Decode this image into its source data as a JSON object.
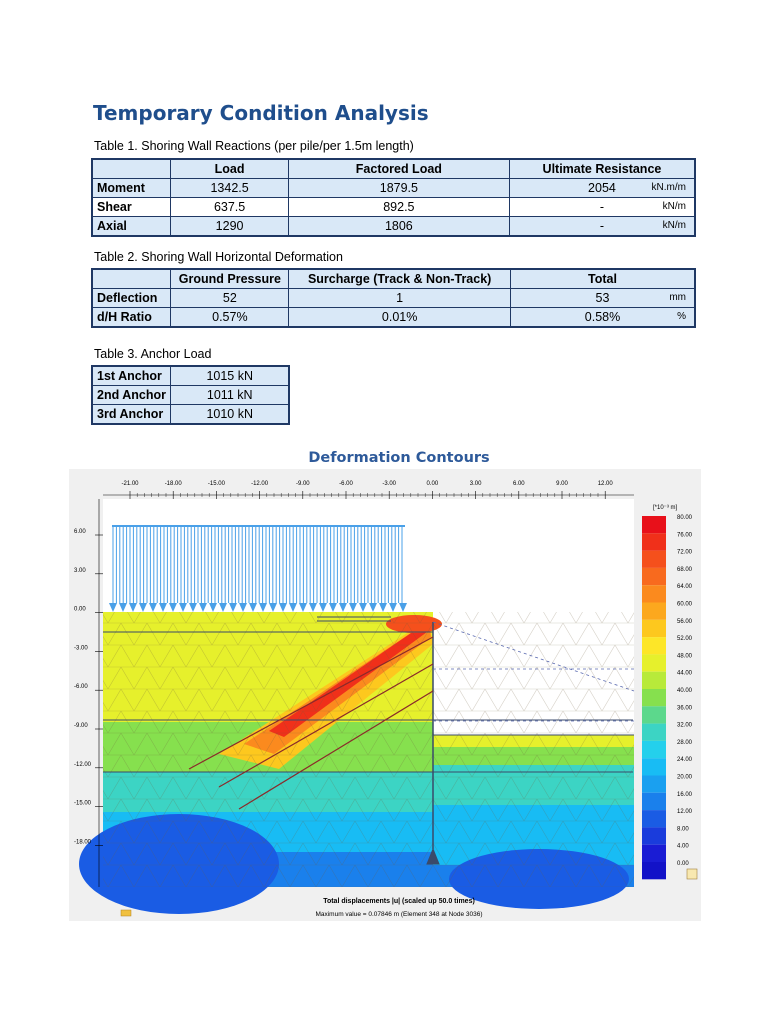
{
  "title": "Temporary Condition Analysis",
  "table1": {
    "caption": "Table 1. Shoring Wall Reactions (per pile/per 1.5m length)",
    "headers": [
      "",
      "Load",
      "Factored Load",
      "Ultimate Resistance"
    ],
    "rows": [
      {
        "label": "Moment",
        "load": "1342.5",
        "factored": "1879.5",
        "ultimate": "2054",
        "unit": "kN.m/m"
      },
      {
        "label": "Shear",
        "load": "637.5",
        "factored": "892.5",
        "ultimate": "-",
        "unit": "kN/m"
      },
      {
        "label": "Axial",
        "load": "1290",
        "factored": "1806",
        "ultimate": "-",
        "unit": "kN/m"
      }
    ]
  },
  "table2": {
    "caption": "Table 2. Shoring Wall Horizontal Deformation",
    "headers": [
      "",
      "Ground Pressure",
      "Surcharge (Track & Non-Track)",
      "Total"
    ],
    "rows": [
      {
        "label": "Deflection",
        "ground": "52",
        "surcharge": "1",
        "total": "53",
        "unit": "mm"
      },
      {
        "label": "d/H Ratio",
        "ground": "0.57%",
        "surcharge": "0.01%",
        "total": "0.58%",
        "unit": "%"
      }
    ]
  },
  "table3": {
    "caption": "Table 3. Anchor Load",
    "rows": [
      {
        "label": "1st Anchor",
        "value": "1015 kN"
      },
      {
        "label": "2nd Anchor",
        "value": "1011 kN"
      },
      {
        "label": "3rd Anchor",
        "value": "1010 kN"
      }
    ]
  },
  "figure": {
    "title": "Deformation Contours",
    "x_ticks": [
      "-21.00",
      "-18.00",
      "-15.00",
      "-12.00",
      "-9.00",
      "-6.00",
      "-3.00",
      "0.00",
      "3.00",
      "6.00",
      "9.00",
      "12.00"
    ],
    "y_ticks": [
      "6.00",
      "3.00",
      "0.00",
      "-3.00",
      "-6.00",
      "-9.00",
      "-12.00",
      "-15.00",
      "-18.00"
    ],
    "legend_unit": "[*10⁻³ m]",
    "legend_values": [
      "80.00",
      "76.00",
      "72.00",
      "68.00",
      "64.00",
      "60.00",
      "56.00",
      "52.00",
      "48.00",
      "44.00",
      "40.00",
      "36.00",
      "32.00",
      "28.00",
      "24.00",
      "20.00",
      "16.00",
      "12.00",
      "8.00",
      "4.00",
      "0.00"
    ],
    "legend_colors": [
      "#e8101a",
      "#f0301a",
      "#f5501c",
      "#f86a1e",
      "#fb8a1e",
      "#fca81e",
      "#fdc81e",
      "#fde628",
      "#e6f02c",
      "#b8ea3a",
      "#86e04e",
      "#5cd88c",
      "#3cd4c4",
      "#24d0ec",
      "#18bcf4",
      "#1aa0f0",
      "#1a80ec",
      "#1a5ce4",
      "#1a3cdc",
      "#1a1cd4",
      "#1212c8"
    ],
    "caption_main": "Total displacements |u| (scaled up 50.0 times)",
    "caption_sub": "Maximum value = 0.07846 m (Element 348 at Node 3036)"
  }
}
